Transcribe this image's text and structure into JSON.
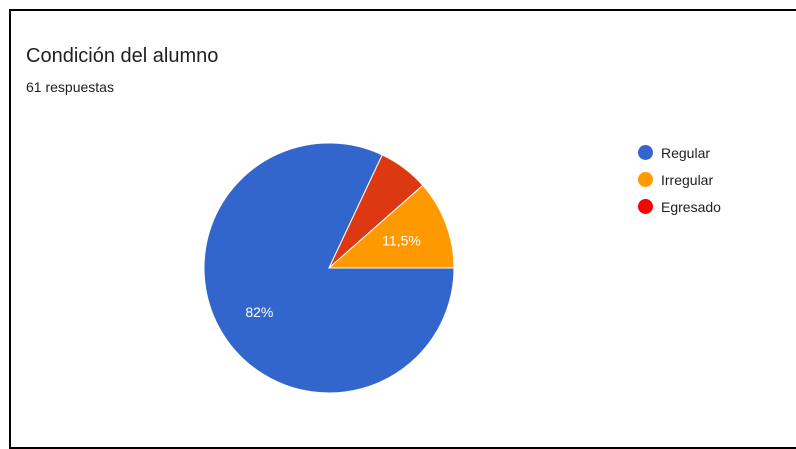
{
  "chart_data": {
    "type": "pie",
    "title": "Condición del alumno",
    "subtitle": "61 respuestas",
    "slices": [
      {
        "label": "Regular",
        "value": 82,
        "display": "82%",
        "color": "#3366cc"
      },
      {
        "label": "Irregular",
        "value": 11.5,
        "display": "11,5%",
        "color": "#ff9900"
      },
      {
        "label": "Egresado",
        "value": 6.5,
        "display": "",
        "color": "#dc3912"
      }
    ],
    "legend_position": "right",
    "legend_marker_colors": [
      "#3366cc",
      "#ff9900",
      "#ff0000"
    ]
  }
}
